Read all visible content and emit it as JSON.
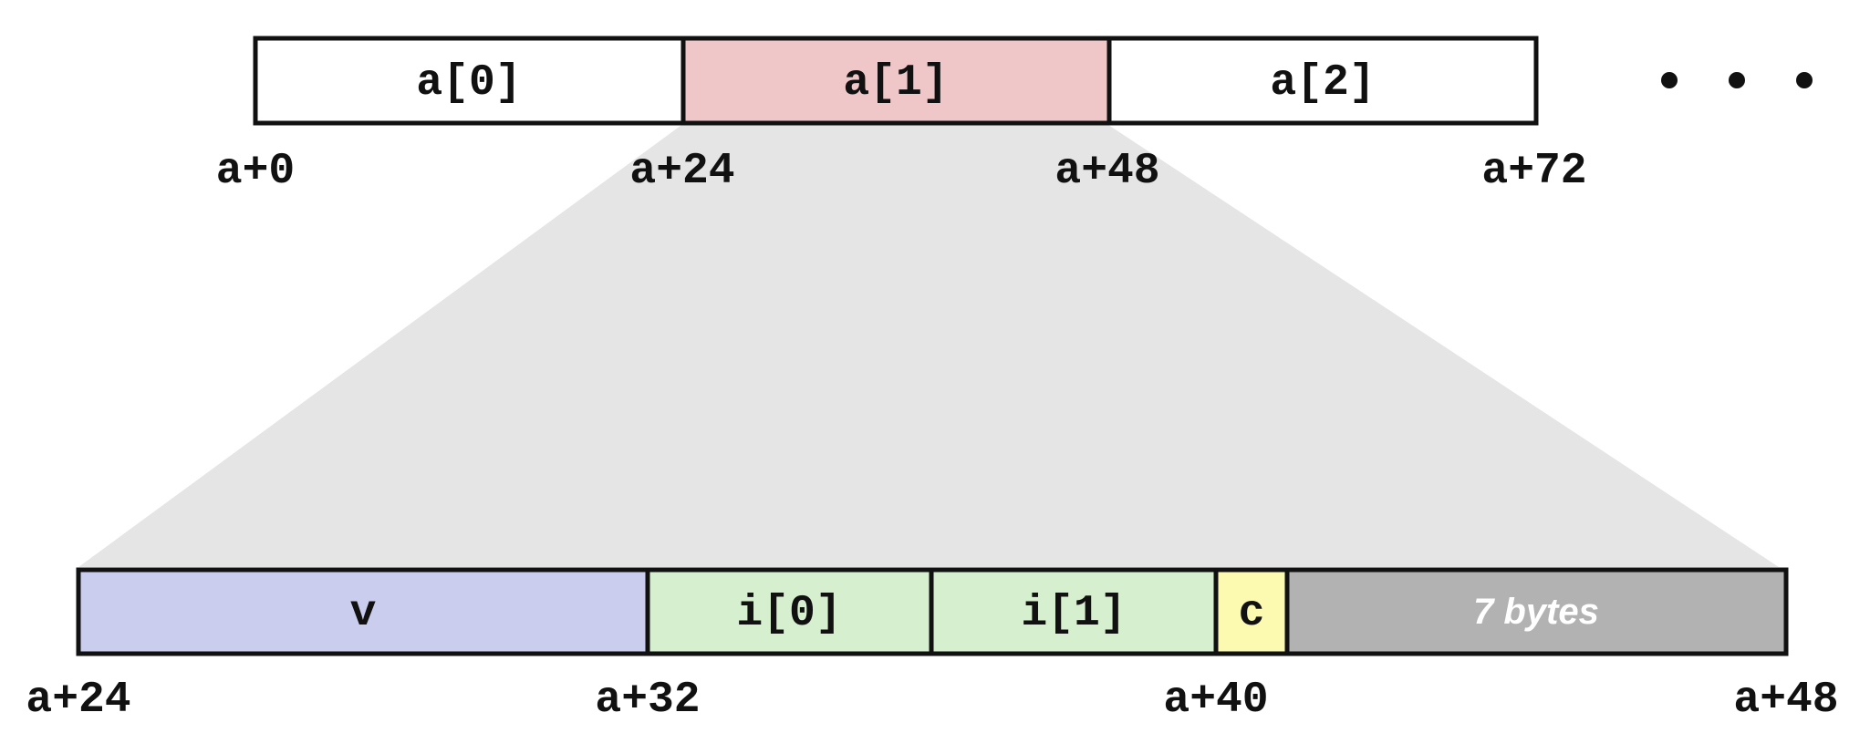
{
  "top_array": {
    "cells": [
      {
        "label": "a[0]",
        "fill": "#ffffff"
      },
      {
        "label": "a[1]",
        "fill": "#efc7c9"
      },
      {
        "label": "a[2]",
        "fill": "#ffffff"
      }
    ],
    "addresses": [
      "a+0",
      "a+24",
      "a+48",
      "a+72"
    ]
  },
  "expansion": {
    "fill": "#e5e5e5"
  },
  "struct_layout": {
    "cells": [
      {
        "label": "v",
        "fill": "#cacdee"
      },
      {
        "label": "i[0]",
        "fill": "#d5efcf"
      },
      {
        "label": "i[1]",
        "fill": "#d5efcf"
      },
      {
        "label": "c",
        "fill": "#fcfab0"
      },
      {
        "label": "7 bytes",
        "fill": "#b2b2b2"
      }
    ],
    "addresses": [
      "a+24",
      "a+32",
      "a+40",
      "a+48"
    ]
  },
  "colors": {
    "stroke": "#111111",
    "ellipsis_dot": "#111111"
  }
}
